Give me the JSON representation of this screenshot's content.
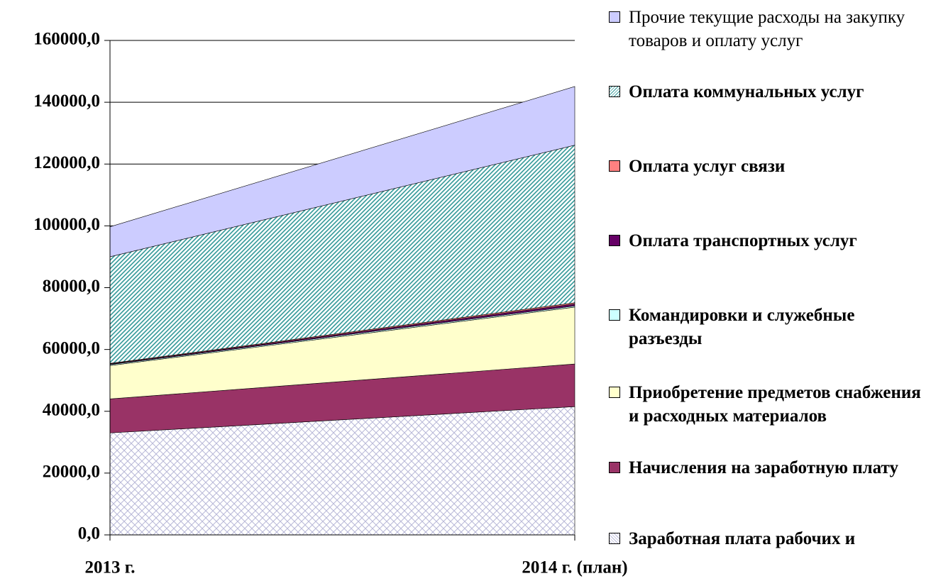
{
  "chart_data": {
    "type": "stacked_area",
    "categories": [
      "2013 г.",
      "2014 г. (план)"
    ],
    "ylim": [
      0,
      160000
    ],
    "yticks": [
      {
        "value": 0,
        "label": "0,0"
      },
      {
        "value": 20000,
        "label": "20000,0"
      },
      {
        "value": 40000,
        "label": "40000,0"
      },
      {
        "value": 60000,
        "label": "60000,0"
      },
      {
        "value": 80000,
        "label": "80000,0"
      },
      {
        "value": 100000,
        "label": "100000,0"
      },
      {
        "value": 120000,
        "label": "120000,0"
      },
      {
        "value": 140000,
        "label": "140000,0"
      },
      {
        "value": 160000,
        "label": "160000,0"
      }
    ],
    "grid": true,
    "legend": "right",
    "series": [
      {
        "name": "Заработная плата рабочих и",
        "color": "#b8b8d8",
        "pattern": "crosshatch",
        "values": [
          33000,
          41500
        ]
      },
      {
        "name": "Начисления на заработную плату",
        "color": "#993366",
        "values": [
          11000,
          13800
        ]
      },
      {
        "name": "Приобретение предметов снабжения и расходных материалов",
        "color": "#ffffcc",
        "values": [
          10800,
          18400
        ]
      },
      {
        "name": "Командировки и служебные разъезды",
        "color": "#ccffff",
        "values": [
          300,
          400
        ]
      },
      {
        "name": "Оплата транспортных услуг",
        "color": "#660066",
        "values": [
          200,
          600
        ]
      },
      {
        "name": "Оплата услуг связи",
        "color": "#ff8080",
        "values": [
          200,
          400
        ]
      },
      {
        "name": "Оплата коммунальных услуг",
        "color": "#339999",
        "pattern": "diagonal",
        "values": [
          34500,
          51000
        ]
      },
      {
        "name": "Прочие текущие расходы на закупку товаров и оплату услуг",
        "color": "#ccccff",
        "values": [
          9700,
          19000
        ]
      }
    ]
  }
}
